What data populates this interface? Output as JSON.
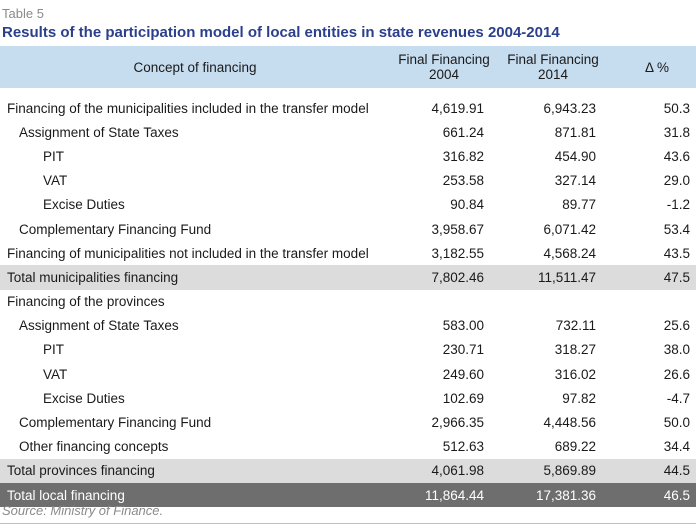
{
  "label": "Table 5",
  "title": "Results of the participation model of local entities in state revenues 2004-2014",
  "headers": {
    "concept": "Concept of financing",
    "col2004_line1": "Final Financing",
    "col2004_line2": "2004",
    "col2014_line1": "Final Financing",
    "col2014_line2": "2014",
    "delta": "Δ %"
  },
  "rows": [
    {
      "concept": "Financing of the municipalities included in the transfer model",
      "v2004": "4,619.91",
      "v2014": "6,943.23",
      "delta": "50.3",
      "level": 0,
      "style": "normal"
    },
    {
      "concept": "Assignment of State Taxes",
      "v2004": "661.24",
      "v2014": "871.81",
      "delta": "31.8",
      "level": 1,
      "style": "normal"
    },
    {
      "concept": "PIT",
      "v2004": "316.82",
      "v2014": "454.90",
      "delta": "43.6",
      "level": 2,
      "style": "normal"
    },
    {
      "concept": "VAT",
      "v2004": "253.58",
      "v2014": "327.14",
      "delta": "29.0",
      "level": 2,
      "style": "normal"
    },
    {
      "concept": "Excise Duties",
      "v2004": "90.84",
      "v2014": "89.77",
      "delta": "-1.2",
      "level": 2,
      "style": "normal"
    },
    {
      "concept": "Complementary Financing Fund",
      "v2004": "3,958.67",
      "v2014": "6,071.42",
      "delta": "53.4",
      "level": 1,
      "style": "normal"
    },
    {
      "concept": "Financing of municipalities not included in the transfer model",
      "v2004": "3,182.55",
      "v2014": "4,568.24",
      "delta": "43.5",
      "level": 0,
      "style": "normal"
    },
    {
      "concept": "Total municipalities financing",
      "v2004": "7,802.46",
      "v2014": "11,511.47",
      "delta": "47.5",
      "level": 0,
      "style": "sub"
    },
    {
      "concept": "Financing of the provinces",
      "v2004": "",
      "v2014": "",
      "delta": "",
      "level": 0,
      "style": "normal"
    },
    {
      "concept": "Assignment of State Taxes",
      "v2004": "583.00",
      "v2014": "732.11",
      "delta": "25.6",
      "level": 1,
      "style": "normal"
    },
    {
      "concept": "PIT",
      "v2004": "230.71",
      "v2014": "318.27",
      "delta": "38.0",
      "level": 2,
      "style": "normal"
    },
    {
      "concept": "VAT",
      "v2004": "249.60",
      "v2014": "316.02",
      "delta": "26.6",
      "level": 2,
      "style": "normal"
    },
    {
      "concept": "Excise Duties",
      "v2004": "102.69",
      "v2014": "97.82",
      "delta": "-4.7",
      "level": 2,
      "style": "normal"
    },
    {
      "concept": "Complementary Financing Fund",
      "v2004": "2,966.35",
      "v2014": "4,448.56",
      "delta": "50.0",
      "level": 1,
      "style": "normal"
    },
    {
      "concept": "Other financing concepts",
      "v2004": "512.63",
      "v2014": "689.22",
      "delta": "34.4",
      "level": 1,
      "style": "normal"
    },
    {
      "concept": "Total provinces financing",
      "v2004": "4,061.98",
      "v2014": "5,869.89",
      "delta": "44.5",
      "level": 0,
      "style": "sub"
    },
    {
      "concept": "Total local financing",
      "v2004": "11,864.44",
      "v2014": "17,381.36",
      "delta": "46.5",
      "level": 0,
      "style": "grand"
    }
  ],
  "source": "Source: Ministry of Finance.",
  "colors": {
    "title": "#2b3f8c",
    "header_bg": "#c6dcef",
    "subtotal_bg": "#dcdcdc",
    "total_bg": "#6e6e6e"
  }
}
